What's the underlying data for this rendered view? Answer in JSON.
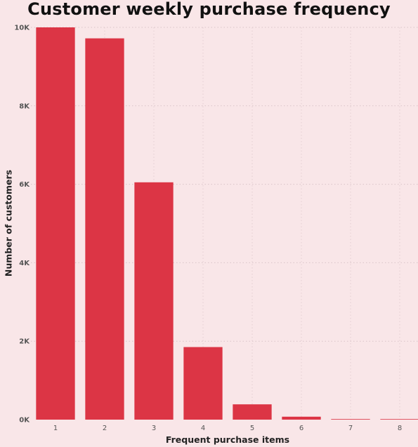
{
  "chart_data": {
    "type": "bar",
    "title": "Customer weekly purchase frequency",
    "xlabel": "Frequent purchase items",
    "ylabel": "Number of customers",
    "categories": [
      "1",
      "2",
      "3",
      "4",
      "5",
      "6",
      "7",
      "8"
    ],
    "values": [
      10000,
      9720,
      6050,
      1850,
      390,
      75,
      15,
      8
    ],
    "ylim": [
      0,
      10000
    ],
    "yticks": [
      0,
      2000,
      4000,
      6000,
      8000,
      10000
    ],
    "ytick_labels": [
      "0K",
      "2K",
      "4K",
      "6K",
      "8K",
      "10K"
    ],
    "grid": true,
    "legend": "none",
    "bar_color": "#dc3545",
    "background": "#f9e6e8"
  }
}
